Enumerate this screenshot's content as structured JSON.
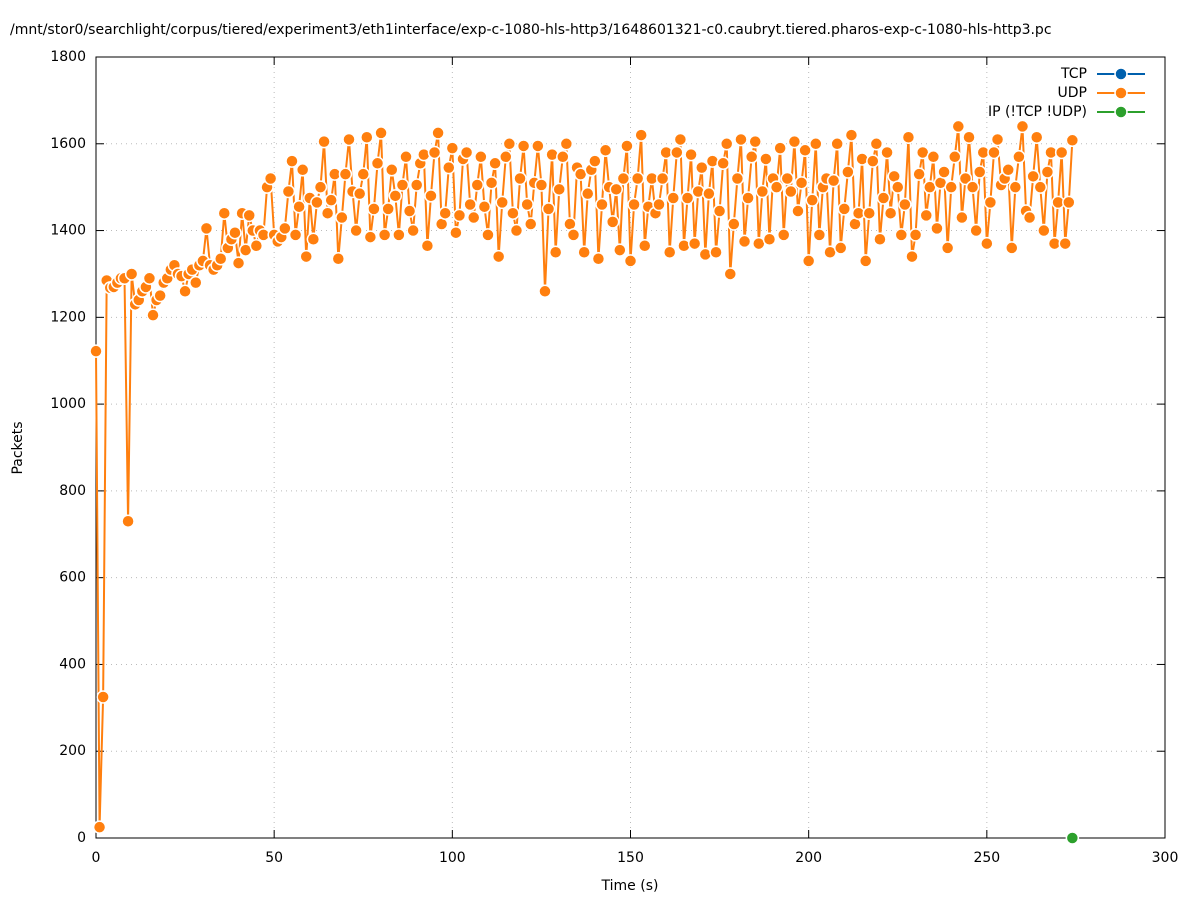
{
  "chart_data": {
    "type": "line",
    "title": "/mnt/stor0/searchlight/corpus/tiered/experiment3/eth1interface/exp-c-1080-hls-http3/1648601321-c0.caubryt.tiered.pharos-exp-c-1080-hls-http3.pc",
    "x_label": "Time (s)",
    "y_label": "Packets",
    "xlim": [
      0,
      300
    ],
    "xticks": [
      0,
      50,
      100,
      150,
      200,
      250,
      300
    ],
    "ylim": [
      0,
      1800
    ],
    "yticks": [
      0,
      200,
      400,
      600,
      800,
      1000,
      1200,
      1400,
      1600,
      1800
    ],
    "grid": true,
    "legend": "top-right",
    "series": [
      {
        "name": "TCP",
        "color": "#0060ad",
        "x": [],
        "values": []
      },
      {
        "name": "UDP",
        "color": "#ff7f0e",
        "x": [
          0,
          1,
          2,
          3,
          4,
          5,
          6,
          7,
          8,
          9,
          10,
          11,
          12,
          13,
          14,
          15,
          16,
          17,
          18,
          19,
          20,
          21,
          22,
          23,
          24,
          25,
          26,
          27,
          28,
          29,
          30,
          31,
          32,
          33,
          34,
          35,
          36,
          37,
          38,
          39,
          40,
          41,
          42,
          43,
          44,
          45,
          46,
          47,
          48,
          49,
          50,
          51,
          52,
          53,
          54,
          55,
          56,
          57,
          58,
          59,
          60,
          61,
          62,
          63,
          64,
          65,
          66,
          67,
          68,
          69,
          70,
          71,
          72,
          73,
          74,
          75,
          76,
          77,
          78,
          79,
          80,
          81,
          82,
          83,
          84,
          85,
          86,
          87,
          88,
          89,
          90,
          91,
          92,
          93,
          94,
          95,
          96,
          97,
          98,
          99,
          100,
          101,
          102,
          103,
          104,
          105,
          106,
          107,
          108,
          109,
          110,
          111,
          112,
          113,
          114,
          115,
          116,
          117,
          118,
          119,
          120,
          121,
          122,
          123,
          124,
          125,
          126,
          127,
          128,
          129,
          130,
          131,
          132,
          133,
          134,
          135,
          136,
          137,
          138,
          139,
          140,
          141,
          142,
          143,
          144,
          145,
          146,
          147,
          148,
          149,
          150,
          151,
          152,
          153,
          154,
          155,
          156,
          157,
          158,
          159,
          160,
          161,
          162,
          163,
          164,
          165,
          166,
          167,
          168,
          169,
          170,
          171,
          172,
          173,
          174,
          175,
          176,
          177,
          178,
          179,
          180,
          181,
          182,
          183,
          184,
          185,
          186,
          187,
          188,
          189,
          190,
          191,
          192,
          193,
          194,
          195,
          196,
          197,
          198,
          199,
          200,
          201,
          202,
          203,
          204,
          205,
          206,
          207,
          208,
          209,
          210,
          211,
          212,
          213,
          214,
          215,
          216,
          217,
          218,
          219,
          220,
          221,
          222,
          223,
          224,
          225,
          226,
          227,
          228,
          229,
          230,
          231,
          232,
          233,
          234,
          235,
          236,
          237,
          238,
          239,
          240,
          241,
          242,
          243,
          244,
          245,
          246,
          247,
          248,
          249,
          250,
          251,
          252,
          253,
          254,
          255,
          256,
          257,
          258,
          259,
          260,
          261,
          262,
          263,
          264,
          265,
          266,
          267,
          268,
          269,
          270,
          271,
          272,
          273,
          274
        ],
        "values": [
          1122,
          25,
          325,
          1285,
          1268,
          1270,
          1280,
          1290,
          1290,
          730,
          1300,
          1230,
          1240,
          1260,
          1270,
          1290,
          1205,
          1240,
          1250,
          1280,
          1290,
          1310,
          1320,
          1300,
          1295,
          1260,
          1300,
          1310,
          1280,
          1320,
          1330,
          1405,
          1320,
          1310,
          1320,
          1335,
          1440,
          1360,
          1380,
          1395,
          1325,
          1440,
          1355,
          1435,
          1400,
          1365,
          1400,
          1390,
          1500,
          1520,
          1390,
          1375,
          1385,
          1405,
          1490,
          1560,
          1390,
          1455,
          1540,
          1340,
          1475,
          1380,
          1465,
          1500,
          1605,
          1440,
          1470,
          1530,
          1335,
          1430,
          1530,
          1610,
          1490,
          1400,
          1485,
          1530,
          1615,
          1385,
          1450,
          1555,
          1625,
          1390,
          1450,
          1540,
          1480,
          1390,
          1505,
          1570,
          1445,
          1400,
          1505,
          1555,
          1575,
          1365,
          1480,
          1580,
          1625,
          1415,
          1440,
          1545,
          1590,
          1395,
          1435,
          1565,
          1580,
          1460,
          1430,
          1505,
          1570,
          1455,
          1390,
          1510,
          1555,
          1340,
          1465,
          1570,
          1600,
          1440,
          1400,
          1520,
          1595,
          1460,
          1415,
          1510,
          1595,
          1505,
          1260,
          1450,
          1575,
          1350,
          1495,
          1570,
          1600,
          1415,
          1390,
          1545,
          1530,
          1350,
          1485,
          1540,
          1560,
          1335,
          1460,
          1585,
          1500,
          1420,
          1495,
          1355,
          1520,
          1595,
          1330,
          1460,
          1520,
          1620,
          1365,
          1455,
          1520,
          1440,
          1460,
          1520,
          1580,
          1350,
          1475,
          1580,
          1610,
          1365,
          1475,
          1575,
          1370,
          1490,
          1545,
          1345,
          1485,
          1560,
          1350,
          1445,
          1555,
          1600,
          1300,
          1415,
          1520,
          1610,
          1375,
          1475,
          1570,
          1605,
          1370,
          1490,
          1565,
          1380,
          1520,
          1500,
          1590,
          1390,
          1520,
          1490,
          1605,
          1445,
          1510,
          1585,
          1330,
          1470,
          1600,
          1390,
          1500,
          1520,
          1350,
          1515,
          1600,
          1360,
          1450,
          1535,
          1620,
          1415,
          1440,
          1565,
          1330,
          1440,
          1560,
          1600,
          1380,
          1475,
          1580,
          1440,
          1525,
          1500,
          1390,
          1460,
          1615,
          1340,
          1390,
          1530,
          1580,
          1435,
          1500,
          1570,
          1405,
          1510,
          1535,
          1360,
          1500,
          1570,
          1640,
          1430,
          1520,
          1615,
          1500,
          1400,
          1535,
          1580,
          1370,
          1465,
          1580,
          1610,
          1505,
          1520,
          1540,
          1360,
          1500,
          1570,
          1640,
          1445,
          1430,
          1525,
          1615,
          1500,
          1400,
          1535,
          1580,
          1370,
          1465,
          1580,
          1370,
          1465,
          1608
        ]
      },
      {
        "name": "IP (!TCP  !UDP)",
        "color": "#2ca02c",
        "x": [
          274
        ],
        "values": [
          0
        ]
      }
    ]
  }
}
